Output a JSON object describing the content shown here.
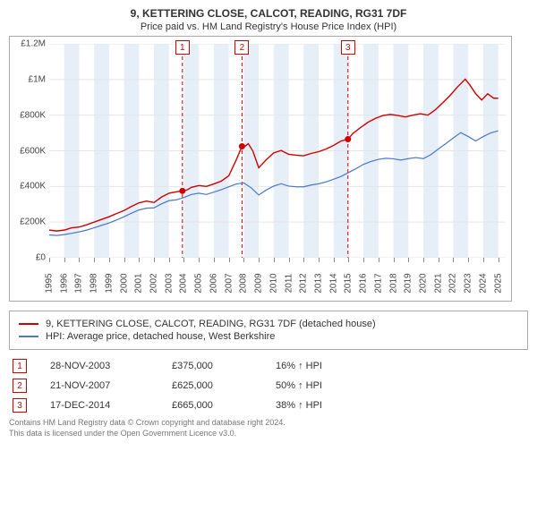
{
  "title": "9, KETTERING CLOSE, CALCOT, READING, RG31 7DF",
  "subtitle": "Price paid vs. HM Land Registry's House Price Index (HPI)",
  "chart": {
    "type": "line",
    "background_color": "#ffffff",
    "border_color": "#aaaaaa",
    "grid_color": "#e5e5e5",
    "xlim": [
      1995,
      2025.5
    ],
    "ylim": [
      0,
      1200000
    ],
    "yticks": [
      {
        "v": 0,
        "label": "£0"
      },
      {
        "v": 200000,
        "label": "£200K"
      },
      {
        "v": 400000,
        "label": "£400K"
      },
      {
        "v": 600000,
        "label": "£600K"
      },
      {
        "v": 800000,
        "label": "£800K"
      },
      {
        "v": 1000000,
        "label": "£1M"
      },
      {
        "v": 1200000,
        "label": "£1.2M"
      }
    ],
    "xticks": [
      1995,
      1996,
      1997,
      1998,
      1999,
      2000,
      2001,
      2002,
      2003,
      2004,
      2005,
      2006,
      2007,
      2008,
      2009,
      2010,
      2011,
      2012,
      2013,
      2014,
      2015,
      2016,
      2017,
      2018,
      2019,
      2020,
      2021,
      2022,
      2023,
      2024,
      2025
    ],
    "shaded_bands": {
      "color": "#dbe7f3",
      "opacity": 0.7,
      "ranges": [
        [
          1996,
          1997
        ],
        [
          1998,
          1999
        ],
        [
          2000,
          2001
        ],
        [
          2002,
          2003
        ],
        [
          2004,
          2005
        ],
        [
          2006,
          2007
        ],
        [
          2008,
          2009
        ],
        [
          2010,
          2011
        ],
        [
          2012,
          2013
        ],
        [
          2014,
          2015
        ],
        [
          2016,
          2017
        ],
        [
          2018,
          2019
        ],
        [
          2020,
          2021
        ],
        [
          2022,
          2023
        ],
        [
          2024,
          2025
        ]
      ]
    },
    "series": [
      {
        "name": "9, KETTERING CLOSE, CALCOT, READING, RG31 7DF (detached house)",
        "color": "#cc0000",
        "line_width": 1.4,
        "points": [
          [
            1995,
            155000
          ],
          [
            1995.5,
            150000
          ],
          [
            1996,
            155000
          ],
          [
            1996.5,
            168000
          ],
          [
            1997,
            172000
          ],
          [
            1997.5,
            185000
          ],
          [
            1998,
            200000
          ],
          [
            1998.5,
            215000
          ],
          [
            1999,
            230000
          ],
          [
            1999.5,
            248000
          ],
          [
            2000,
            265000
          ],
          [
            2000.5,
            288000
          ],
          [
            2001,
            308000
          ],
          [
            2001.5,
            318000
          ],
          [
            2002,
            310000
          ],
          [
            2002.5,
            340000
          ],
          [
            2003,
            362000
          ],
          [
            2003.5,
            370000
          ],
          [
            2003.9,
            375000
          ],
          [
            2004.2,
            380000
          ],
          [
            2004.5,
            395000
          ],
          [
            2005,
            405000
          ],
          [
            2005.5,
            400000
          ],
          [
            2006,
            414000
          ],
          [
            2006.5,
            430000
          ],
          [
            2007,
            460000
          ],
          [
            2007.5,
            550000
          ],
          [
            2007.88,
            625000
          ],
          [
            2008,
            620000
          ],
          [
            2008.3,
            640000
          ],
          [
            2008.6,
            600000
          ],
          [
            2009,
            505000
          ],
          [
            2009.5,
            550000
          ],
          [
            2010,
            588000
          ],
          [
            2010.5,
            602000
          ],
          [
            2011,
            580000
          ],
          [
            2011.5,
            575000
          ],
          [
            2012,
            572000
          ],
          [
            2012.5,
            585000
          ],
          [
            2013,
            595000
          ],
          [
            2013.5,
            610000
          ],
          [
            2014,
            630000
          ],
          [
            2014.5,
            655000
          ],
          [
            2014.96,
            665000
          ],
          [
            2015.3,
            698000
          ],
          [
            2015.8,
            730000
          ],
          [
            2016.3,
            760000
          ],
          [
            2016.8,
            782000
          ],
          [
            2017.3,
            798000
          ],
          [
            2017.8,
            804000
          ],
          [
            2018.3,
            798000
          ],
          [
            2018.8,
            790000
          ],
          [
            2019.3,
            800000
          ],
          [
            2019.8,
            808000
          ],
          [
            2020.3,
            800000
          ],
          [
            2020.8,
            830000
          ],
          [
            2021.3,
            870000
          ],
          [
            2021.8,
            912000
          ],
          [
            2022.3,
            960000
          ],
          [
            2022.8,
            1002000
          ],
          [
            2023.1,
            970000
          ],
          [
            2023.5,
            920000
          ],
          [
            2023.9,
            885000
          ],
          [
            2024.3,
            920000
          ],
          [
            2024.7,
            895000
          ],
          [
            2025,
            895000
          ]
        ],
        "markers": [
          {
            "x": 2003.9,
            "y": 375000,
            "size": 5
          },
          {
            "x": 2007.88,
            "y": 625000,
            "size": 5
          },
          {
            "x": 2014.96,
            "y": 665000,
            "size": 5
          }
        ]
      },
      {
        "name": "HPI: Average price, detached house, West Berkshire",
        "color": "#4a78c8",
        "line_width": 1.2,
        "points": [
          [
            1995,
            128000
          ],
          [
            1995.5,
            125000
          ],
          [
            1996,
            130000
          ],
          [
            1996.5,
            137000
          ],
          [
            1997,
            145000
          ],
          [
            1997.5,
            155000
          ],
          [
            1998,
            168000
          ],
          [
            1998.5,
            182000
          ],
          [
            1999,
            195000
          ],
          [
            1999.5,
            212000
          ],
          [
            2000,
            230000
          ],
          [
            2000.5,
            250000
          ],
          [
            2001,
            268000
          ],
          [
            2001.5,
            278000
          ],
          [
            2002,
            280000
          ],
          [
            2002.5,
            302000
          ],
          [
            2003,
            320000
          ],
          [
            2003.5,
            325000
          ],
          [
            2004,
            338000
          ],
          [
            2004.5,
            355000
          ],
          [
            2005,
            362000
          ],
          [
            2005.5,
            355000
          ],
          [
            2006,
            368000
          ],
          [
            2006.5,
            382000
          ],
          [
            2007,
            398000
          ],
          [
            2007.5,
            414000
          ],
          [
            2008,
            420000
          ],
          [
            2008.5,
            392000
          ],
          [
            2009,
            352000
          ],
          [
            2009.5,
            380000
          ],
          [
            2010,
            402000
          ],
          [
            2010.5,
            415000
          ],
          [
            2011,
            402000
          ],
          [
            2011.5,
            398000
          ],
          [
            2012,
            398000
          ],
          [
            2012.5,
            408000
          ],
          [
            2013,
            415000
          ],
          [
            2013.5,
            425000
          ],
          [
            2014,
            440000
          ],
          [
            2014.5,
            456000
          ],
          [
            2015,
            478000
          ],
          [
            2015.5,
            500000
          ],
          [
            2016,
            524000
          ],
          [
            2016.5,
            540000
          ],
          [
            2017,
            552000
          ],
          [
            2017.5,
            558000
          ],
          [
            2018,
            555000
          ],
          [
            2018.5,
            548000
          ],
          [
            2019,
            556000
          ],
          [
            2019.5,
            562000
          ],
          [
            2020,
            556000
          ],
          [
            2020.5,
            578000
          ],
          [
            2021,
            610000
          ],
          [
            2021.5,
            640000
          ],
          [
            2022,
            672000
          ],
          [
            2022.5,
            702000
          ],
          [
            2023,
            680000
          ],
          [
            2023.5,
            655000
          ],
          [
            2024,
            680000
          ],
          [
            2024.5,
            700000
          ],
          [
            2025,
            712000
          ]
        ]
      }
    ],
    "event_lines": {
      "color": "#cc0000",
      "dash": "4,3",
      "items": [
        {
          "num": "1",
          "x": 2003.9
        },
        {
          "num": "2",
          "x": 2007.88
        },
        {
          "num": "3",
          "x": 2014.96
        }
      ]
    }
  },
  "legend": {
    "items": [
      {
        "color": "#cc0000",
        "label": "9, KETTERING CLOSE, CALCOT, READING, RG31 7DF (detached house)"
      },
      {
        "color": "#4a78c8",
        "label": "HPI: Average price, detached house, West Berkshire"
      }
    ]
  },
  "events": [
    {
      "num": "1",
      "date": "28-NOV-2003",
      "price": "£375,000",
      "pct": "16% ↑ HPI"
    },
    {
      "num": "2",
      "date": "21-NOV-2007",
      "price": "£625,000",
      "pct": "50% ↑ HPI"
    },
    {
      "num": "3",
      "date": "17-DEC-2014",
      "price": "£665,000",
      "pct": "38% ↑ HPI"
    }
  ],
  "footnote_l1": "Contains HM Land Registry data © Crown copyright and database right 2024.",
  "footnote_l2": "This data is licensed under the Open Government Licence v3.0."
}
